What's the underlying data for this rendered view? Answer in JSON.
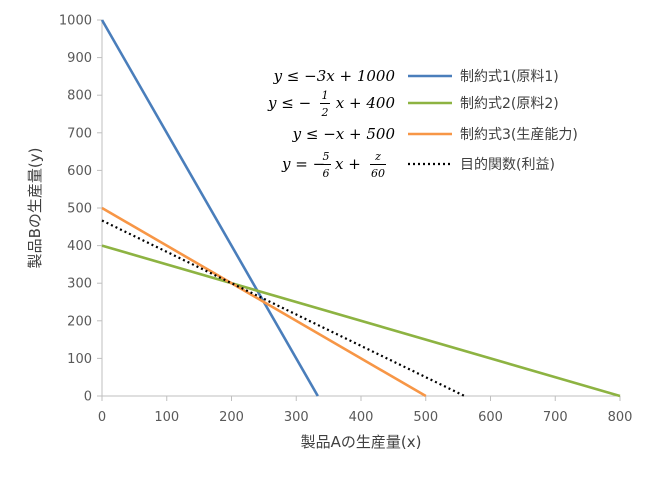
{
  "chart_data": {
    "type": "line",
    "xlabel": "製品Aの生産量(x)",
    "ylabel": "製品Bの生産量(y)",
    "xlim": [
      0,
      800
    ],
    "ylim": [
      0,
      1000
    ],
    "x_ticks": [
      0,
      100,
      200,
      300,
      400,
      500,
      600,
      700,
      800
    ],
    "y_ticks": [
      0,
      100,
      200,
      300,
      400,
      500,
      600,
      700,
      800,
      900,
      1000
    ],
    "grid": false,
    "legend_position": "top-right",
    "series": [
      {
        "name": "制約式1(原料1)",
        "color": "#4a7ebb",
        "style": "solid",
        "x": [
          0,
          333.3
        ],
        "y": [
          1000,
          0
        ],
        "equation": {
          "lhs": "y ≤ −3x + 1000"
        }
      },
      {
        "name": "制約式2(原料2)",
        "color": "#8db342",
        "style": "solid",
        "x": [
          0,
          800
        ],
        "y": [
          400,
          0
        ],
        "equation": {
          "lhs": "y ≤ −",
          "num": "1",
          "den": "2",
          "rhs": "x + 400"
        }
      },
      {
        "name": "制約式3(生産能力)",
        "color": "#f79646",
        "style": "solid",
        "x": [
          0,
          500
        ],
        "y": [
          500,
          0
        ],
        "equation": {
          "lhs": "y ≤ −x + 500"
        }
      },
      {
        "name": "目的関数(利益)",
        "color": "#000000",
        "style": "dotted",
        "x": [
          0,
          560
        ],
        "y": [
          466.7,
          0
        ],
        "equation": {
          "lhs": "y = −",
          "num": "5",
          "den": "6",
          "mid": "x +",
          "num2": "z",
          "den2": "60"
        }
      }
    ]
  }
}
